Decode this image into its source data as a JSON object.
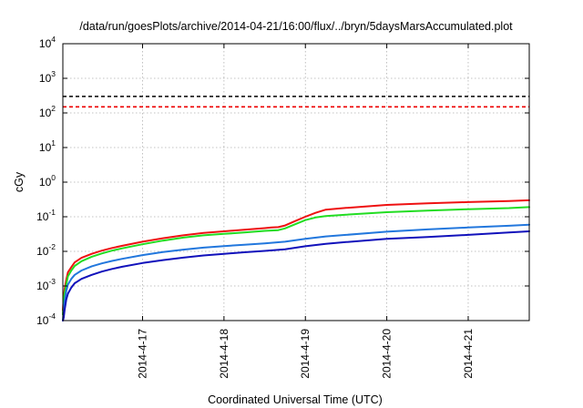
{
  "chart_data": {
    "type": "line",
    "title": "/data/run/goesPlots/archive/2014-04-21/16:00/flux/../bryn/5daysMarsAccumulated.plot",
    "xlabel": "Coordinated Universal Time (UTC)",
    "ylabel": "cGy",
    "y_scale": "log",
    "ylim": [
      0.0001,
      10000
    ],
    "y_ticks": [
      {
        "base": "10",
        "exp": "-4",
        "value": 0.0001
      },
      {
        "base": "10",
        "exp": "-3",
        "value": 0.001
      },
      {
        "base": "10",
        "exp": "-2",
        "value": 0.01
      },
      {
        "base": "10",
        "exp": "-1",
        "value": 0.1
      },
      {
        "base": "10",
        "exp": "0",
        "value": 1
      },
      {
        "base": "10",
        "exp": "1",
        "value": 10
      },
      {
        "base": "10",
        "exp": "2",
        "value": 100
      },
      {
        "base": "10",
        "exp": "3",
        "value": 1000
      },
      {
        "base": "10",
        "exp": "4",
        "value": 10000
      }
    ],
    "xlim": [
      "2014-04-16T00:30",
      "2014-04-21T18:00"
    ],
    "x_ticks": [
      {
        "label": "2014-4-17",
        "value": "2014-04-17T00:00"
      },
      {
        "label": "2014-4-18",
        "value": "2014-04-18T00:00"
      },
      {
        "label": "2014-4-19",
        "value": "2014-04-19T00:00"
      },
      {
        "label": "2014-4-20",
        "value": "2014-04-20T00:00"
      },
      {
        "label": "2014-4-21",
        "value": "2014-04-21T00:00"
      }
    ],
    "grid": true,
    "reference_lines": [
      {
        "y": 300,
        "color": "#000000",
        "style": "dashed"
      },
      {
        "y": 150,
        "color": "#ee0000",
        "style": "dashed"
      }
    ],
    "series": [
      {
        "color": "#ee1111",
        "x": [
          "2014-04-16T00:30",
          "2014-04-16T00:45",
          "2014-04-16T01:00",
          "2014-04-16T01:30",
          "2014-04-16T02:00",
          "2014-04-16T03:00",
          "2014-04-16T04:00",
          "2014-04-16T06:00",
          "2014-04-16T09:00",
          "2014-04-16T12:00",
          "2014-04-16T15:00",
          "2014-04-16T18:00",
          "2014-04-17T00:00",
          "2014-04-17T06:00",
          "2014-04-17T12:00",
          "2014-04-17T18:00",
          "2014-04-18T00:00",
          "2014-04-18T06:00",
          "2014-04-18T12:00",
          "2014-04-18T14:00",
          "2014-04-18T16:00",
          "2014-04-18T18:00",
          "2014-04-18T21:00",
          "2014-04-19T00:00",
          "2014-04-19T03:00",
          "2014-04-19T06:00",
          "2014-04-19T12:00",
          "2014-04-20T00:00",
          "2014-04-20T12:00",
          "2014-04-21T00:00",
          "2014-04-21T12:00",
          "2014-04-21T18:00"
        ],
        "y": [
          0.0002,
          0.00045,
          0.0008,
          0.0015,
          0.0025,
          0.0035,
          0.0048,
          0.0065,
          0.0085,
          0.0105,
          0.0125,
          0.0145,
          0.019,
          0.024,
          0.029,
          0.034,
          0.038,
          0.042,
          0.047,
          0.049,
          0.05,
          0.056,
          0.075,
          0.1,
          0.13,
          0.16,
          0.18,
          0.22,
          0.245,
          0.265,
          0.285,
          0.3
        ]
      },
      {
        "color": "#22dd22",
        "x": [
          "2014-04-16T00:30",
          "2014-04-16T00:45",
          "2014-04-16T01:00",
          "2014-04-16T01:30",
          "2014-04-16T02:00",
          "2014-04-16T03:00",
          "2014-04-16T04:00",
          "2014-04-16T06:00",
          "2014-04-16T09:00",
          "2014-04-16T12:00",
          "2014-04-16T15:00",
          "2014-04-16T18:00",
          "2014-04-17T00:00",
          "2014-04-17T06:00",
          "2014-04-17T12:00",
          "2014-04-17T18:00",
          "2014-04-18T00:00",
          "2014-04-18T06:00",
          "2014-04-18T12:00",
          "2014-04-18T14:00",
          "2014-04-18T16:00",
          "2014-04-18T18:00",
          "2014-04-18T21:00",
          "2014-04-19T00:00",
          "2014-04-19T03:00",
          "2014-04-19T06:00",
          "2014-04-19T12:00",
          "2014-04-20T00:00",
          "2014-04-20T12:00",
          "2014-04-21T00:00",
          "2014-04-21T12:00",
          "2014-04-21T18:00"
        ],
        "y": [
          0.00015,
          0.00035,
          0.0006,
          0.0011,
          0.0019,
          0.0028,
          0.0038,
          0.0052,
          0.007,
          0.0087,
          0.0105,
          0.0122,
          0.016,
          0.0205,
          0.025,
          0.029,
          0.032,
          0.035,
          0.039,
          0.04,
          0.041,
          0.046,
          0.061,
          0.08,
          0.095,
          0.105,
          0.115,
          0.135,
          0.15,
          0.165,
          0.178,
          0.19
        ]
      },
      {
        "color": "#2277dd",
        "x": [
          "2014-04-16T00:30",
          "2014-04-16T00:45",
          "2014-04-16T01:00",
          "2014-04-16T01:30",
          "2014-04-16T02:00",
          "2014-04-16T03:00",
          "2014-04-16T04:00",
          "2014-04-16T06:00",
          "2014-04-16T09:00",
          "2014-04-16T12:00",
          "2014-04-16T15:00",
          "2014-04-16T18:00",
          "2014-04-17T00:00",
          "2014-04-17T06:00",
          "2014-04-17T12:00",
          "2014-04-17T18:00",
          "2014-04-18T00:00",
          "2014-04-18T06:00",
          "2014-04-18T12:00",
          "2014-04-18T18:00",
          "2014-04-19T00:00",
          "2014-04-19T06:00",
          "2014-04-19T12:00",
          "2014-04-20T00:00",
          "2014-04-20T12:00",
          "2014-04-21T00:00",
          "2014-04-21T12:00",
          "2014-04-21T18:00"
        ],
        "y": [
          0.0001,
          0.0002,
          0.00035,
          0.0007,
          0.0011,
          0.0016,
          0.0021,
          0.0028,
          0.0037,
          0.0045,
          0.0053,
          0.0061,
          0.0078,
          0.0095,
          0.0112,
          0.0128,
          0.0142,
          0.0156,
          0.017,
          0.019,
          0.023,
          0.027,
          0.03,
          0.037,
          0.043,
          0.049,
          0.055,
          0.059
        ]
      },
      {
        "color": "#1111bb",
        "x": [
          "2014-04-16T00:30",
          "2014-04-16T00:45",
          "2014-04-16T01:00",
          "2014-04-16T01:30",
          "2014-04-16T02:00",
          "2014-04-16T03:00",
          "2014-04-16T04:00",
          "2014-04-16T06:00",
          "2014-04-16T09:00",
          "2014-04-16T12:00",
          "2014-04-16T15:00",
          "2014-04-16T18:00",
          "2014-04-17T00:00",
          "2014-04-17T06:00",
          "2014-04-17T12:00",
          "2014-04-17T18:00",
          "2014-04-18T00:00",
          "2014-04-18T06:00",
          "2014-04-18T12:00",
          "2014-04-18T18:00",
          "2014-04-19T00:00",
          "2014-04-19T06:00",
          "2014-04-19T12:00",
          "2014-04-20T00:00",
          "2014-04-20T12:00",
          "2014-04-21T00:00",
          "2014-04-21T12:00",
          "2014-04-21T18:00"
        ],
        "y": [
          0.0001,
          0.00012,
          0.0002,
          0.0004,
          0.0006,
          0.0009,
          0.0012,
          0.0016,
          0.0021,
          0.0026,
          0.0031,
          0.0036,
          0.0046,
          0.0056,
          0.0066,
          0.0076,
          0.0085,
          0.0094,
          0.0103,
          0.0115,
          0.014,
          0.0165,
          0.0185,
          0.023,
          0.026,
          0.03,
          0.035,
          0.038
        ]
      }
    ]
  }
}
